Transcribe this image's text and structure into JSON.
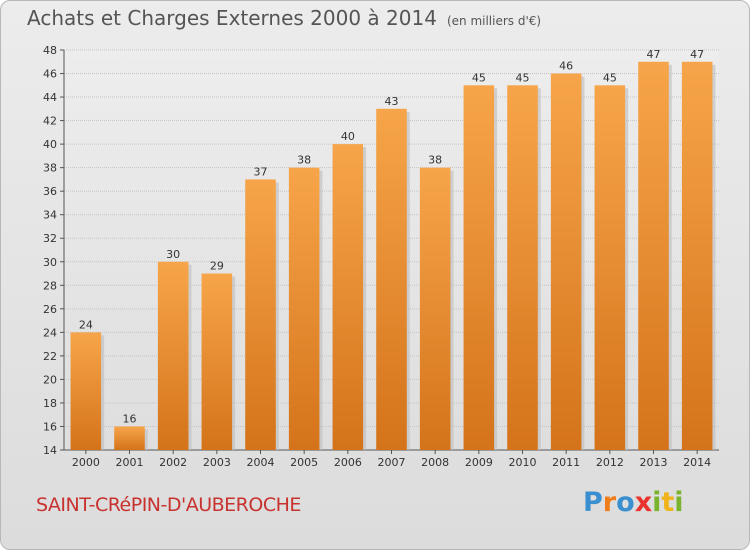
{
  "header": {
    "title": "Achats et Charges Externes 2000 à 2014",
    "unit": "(en milliers d'€)"
  },
  "footer": {
    "commune": "SAINT-CRéPIN-D'AUBEROCHE",
    "logo": [
      "P",
      "r",
      "o",
      "x",
      "i",
      "t",
      "i"
    ]
  },
  "colors": {
    "bar_top": "#f7a54a",
    "bar_bottom": "#d4731a",
    "commune": "#c8322e",
    "logo": [
      "#3a8fd0",
      "#f07d1a",
      "#3a8fd0",
      "#e8342c",
      "#7ab32e",
      "#f0b41a",
      "#7ab32e"
    ]
  },
  "chart_data": {
    "type": "bar",
    "title": "Achats et Charges Externes 2000 à 2014",
    "subtitle": "(en milliers d'€)",
    "xlabel": "",
    "ylabel": "",
    "categories": [
      "2000",
      "2001",
      "2002",
      "2003",
      "2004",
      "2005",
      "2006",
      "2007",
      "2008",
      "2009",
      "2010",
      "2011",
      "2012",
      "2013",
      "2014"
    ],
    "values": [
      24,
      16,
      30,
      29,
      37,
      38,
      40,
      43,
      38,
      45,
      45,
      46,
      45,
      47,
      47
    ],
    "ylim": [
      14,
      48
    ],
    "yticks": [
      14,
      16,
      18,
      20,
      22,
      24,
      26,
      28,
      30,
      32,
      34,
      36,
      38,
      40,
      42,
      44,
      46,
      48
    ],
    "grid": true,
    "legend": "none"
  }
}
